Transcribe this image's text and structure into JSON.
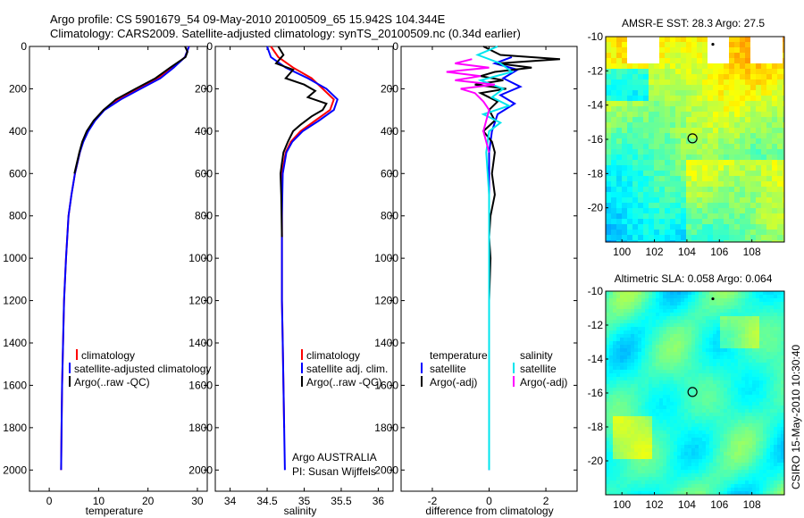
{
  "header": {
    "line1": "Argo profile: CS 5901679_54 09-May-2010 20100509_65 15.942S 104.344E",
    "line2": "Climatology: CARS2009. Satellite-adjusted climatology: synTS_20100509.nc (0.34d earlier)"
  },
  "side_label": "CSIRO 15-May-2010 10:30:40",
  "colors": {
    "clim": "#ff0000",
    "sat": "#0000ff",
    "argo": "#000000",
    "sal_sat": "#00e5ee",
    "sal_argo": "#ff00ff"
  },
  "chart_data": [
    {
      "type": "line",
      "id": "temperature",
      "xlabel": "temperature",
      "ylabel": "",
      "xlim": [
        -4,
        32
      ],
      "ylim": [
        2100,
        0
      ],
      "xticks": [
        0,
        10,
        20,
        30
      ],
      "yticks": [
        0,
        200,
        400,
        600,
        800,
        1000,
        1200,
        1400,
        1600,
        1800,
        2000
      ],
      "legend": [
        "climatology",
        "satellite-adjusted climatology",
        "Argo(..raw -QC)"
      ],
      "series": [
        {
          "name": "climatology",
          "color": "#ff0000",
          "x": [
            28.3,
            27.5,
            25.0,
            22.0,
            18.0,
            14.0,
            11.0,
            9.2,
            7.8,
            6.8,
            6.2,
            5.2,
            4.5,
            3.9,
            3.4,
            3.0,
            2.8,
            2.6,
            2.5,
            2.4
          ],
          "y": [
            0,
            50,
            100,
            150,
            200,
            250,
            300,
            350,
            400,
            450,
            500,
            600,
            700,
            800,
            1000,
            1200,
            1400,
            1600,
            1800,
            2000
          ]
        },
        {
          "name": "satellite-adjusted climatology",
          "color": "#0000ff",
          "x": [
            28.3,
            27.5,
            25.2,
            22.5,
            18.5,
            14.5,
            11.2,
            9.3,
            7.9,
            6.9,
            6.2,
            5.2,
            4.5,
            3.9,
            3.4,
            3.0,
            2.8,
            2.6,
            2.5,
            2.4
          ],
          "y": [
            0,
            50,
            100,
            150,
            200,
            250,
            300,
            350,
            400,
            450,
            500,
            600,
            700,
            800,
            1000,
            1200,
            1400,
            1600,
            1800,
            2000
          ]
        },
        {
          "name": "Argo(..raw -QC)",
          "color": "#000000",
          "x": [
            27.5,
            28.0,
            27.6,
            24.5,
            21.5,
            17.5,
            13.5,
            11.0,
            9.0,
            7.6,
            6.7,
            6.1,
            5.1
          ],
          "y": [
            0,
            25,
            50,
            100,
            150,
            200,
            250,
            300,
            350,
            400,
            450,
            500,
            600
          ]
        }
      ]
    },
    {
      "type": "line",
      "id": "salinity",
      "xlabel": "salinity",
      "ylabel": "",
      "xlim": [
        33.8,
        36.2
      ],
      "ylim": [
        2100,
        0
      ],
      "xticks": [
        34,
        34.5,
        35,
        35.5,
        36
      ],
      "yticks": [
        0,
        200,
        400,
        600,
        800,
        1000,
        1200,
        1400,
        1600,
        1800,
        2000
      ],
      "legend": [
        "climatology",
        "satellite adj. clim.",
        "Argo(..raw -QC)"
      ],
      "series": [
        {
          "name": "climatology",
          "color": "#ff0000",
          "x": [
            34.55,
            34.65,
            34.85,
            35.1,
            35.25,
            35.4,
            35.35,
            35.15,
            34.95,
            34.82,
            34.75,
            34.7,
            34.7,
            34.7,
            34.7,
            34.71,
            34.72,
            34.73
          ],
          "y": [
            0,
            50,
            100,
            150,
            200,
            250,
            300,
            350,
            400,
            450,
            500,
            600,
            800,
            1000,
            1200,
            1400,
            1600,
            1800
          ]
        },
        {
          "name": "satellite adj. clim.",
          "color": "#0000ff",
          "x": [
            34.5,
            34.55,
            34.75,
            35.05,
            35.3,
            35.45,
            35.4,
            35.2,
            34.98,
            34.84,
            34.76,
            34.71,
            34.7,
            34.7,
            34.7,
            34.71,
            34.72,
            34.73,
            34.74
          ],
          "y": [
            0,
            50,
            100,
            150,
            200,
            250,
            300,
            350,
            400,
            450,
            500,
            600,
            800,
            1000,
            1200,
            1400,
            1600,
            1800,
            2000
          ]
        },
        {
          "name": "Argo(..raw -QC)",
          "color": "#000000",
          "x": [
            34.65,
            34.72,
            34.62,
            34.85,
            34.75,
            35.0,
            35.15,
            35.05,
            35.3,
            35.25,
            35.1,
            34.95,
            34.85,
            34.78,
            34.72,
            34.7,
            34.68,
            34.69,
            34.7
          ],
          "y": [
            0,
            40,
            80,
            110,
            150,
            180,
            210,
            240,
            270,
            300,
            330,
            370,
            400,
            450,
            500,
            550,
            600,
            700,
            900
          ]
        }
      ]
    },
    {
      "type": "line",
      "id": "difference",
      "xlabel": "difference from climatology",
      "ylabel": "",
      "xlim": [
        -3.1,
        3.1
      ],
      "ylim": [
        2100,
        0
      ],
      "xticks": [
        -2,
        0,
        2
      ],
      "yticks": [
        0,
        200,
        400,
        600,
        800,
        1000,
        1200,
        1400,
        1600,
        1800,
        2000
      ],
      "legend": [
        "temperature",
        "satellite",
        "Argo(-adj)",
        "salinity",
        "satellite",
        "Argo(-adj)"
      ],
      "series": [
        {
          "name": "temperature satellite",
          "color": "#0000ff",
          "x": [
            0.8,
            0.2,
            1.0,
            0.5,
            1.1,
            0.4,
            0.9,
            0.3,
            0.1,
            0.0,
            0.0,
            0.0,
            0.0,
            0.0,
            0.0
          ],
          "y": [
            50,
            80,
            110,
            150,
            190,
            230,
            270,
            320,
            400,
            500,
            700,
            1000,
            1400,
            1800,
            2000
          ]
        },
        {
          "name": "temperature Argo(-adj)",
          "color": "#000000",
          "x": [
            -0.2,
            0.4,
            2.5,
            0.3,
            1.5,
            0.2,
            -0.3,
            0.5,
            -0.5,
            0.6,
            -0.3,
            0.3,
            0.0,
            0.2,
            -0.2,
            0.1,
            0.2,
            0.1,
            0.2,
            0.05,
            0.0,
            0.05,
            0.0,
            0.0
          ],
          "y": [
            0,
            40,
            60,
            80,
            100,
            120,
            140,
            160,
            180,
            200,
            220,
            260,
            300,
            350,
            400,
            450,
            500,
            600,
            700,
            800,
            900,
            1000,
            1200,
            1400
          ]
        },
        {
          "name": "salinity satellite",
          "color": "#00e5ee",
          "x": [
            0.3,
            -0.4,
            0.4,
            0.8,
            -0.3,
            0.5,
            0.1,
            0.7,
            -0.2,
            0.4,
            0.0,
            -0.1,
            0.0,
            0.0,
            0.0,
            0.0
          ],
          "y": [
            0,
            40,
            80,
            120,
            160,
            200,
            240,
            280,
            320,
            360,
            400,
            500,
            700,
            1000,
            1500,
            2000
          ]
        },
        {
          "name": "salinity Argo(-adj)",
          "color": "#ff00ff",
          "x": [
            -0.6,
            -1.2,
            0.0,
            -1.5,
            -0.3,
            -1.2,
            0.2,
            -1.0,
            -0.5,
            -0.2,
            0.0,
            -0.2,
            0.0
          ],
          "y": [
            60,
            80,
            100,
            120,
            140,
            160,
            180,
            200,
            220,
            260,
            300,
            400,
            500
          ]
        }
      ]
    },
    {
      "type": "heatmap",
      "id": "sst_map",
      "title": "AMSR-E SST: 28.3  Argo: 27.5",
      "xlabel": "",
      "ylabel": "",
      "xlim": [
        99,
        110
      ],
      "ylim": [
        -22,
        -10
      ],
      "xticks": [
        100,
        102,
        104,
        106,
        108
      ],
      "yticks": [
        -10,
        -12,
        -14,
        -16,
        -18,
        -20
      ],
      "float_position": [
        104.344,
        -15.942
      ]
    },
    {
      "type": "heatmap",
      "id": "sla_map",
      "title": "Altimetric SLA: 0.058  Argo: 0.064",
      "xlabel": "",
      "ylabel": "",
      "xlim": [
        99,
        110
      ],
      "ylim": [
        -22,
        -10
      ],
      "xticks": [
        100,
        102,
        104,
        106,
        108
      ],
      "yticks": [
        -10,
        -12,
        -14,
        -16,
        -18,
        -20
      ],
      "float_position": [
        104.344,
        -15.942
      ]
    }
  ],
  "annotations": {
    "argo_country": "Argo AUSTRALIA",
    "pi": "PI: Susan Wijffels"
  }
}
